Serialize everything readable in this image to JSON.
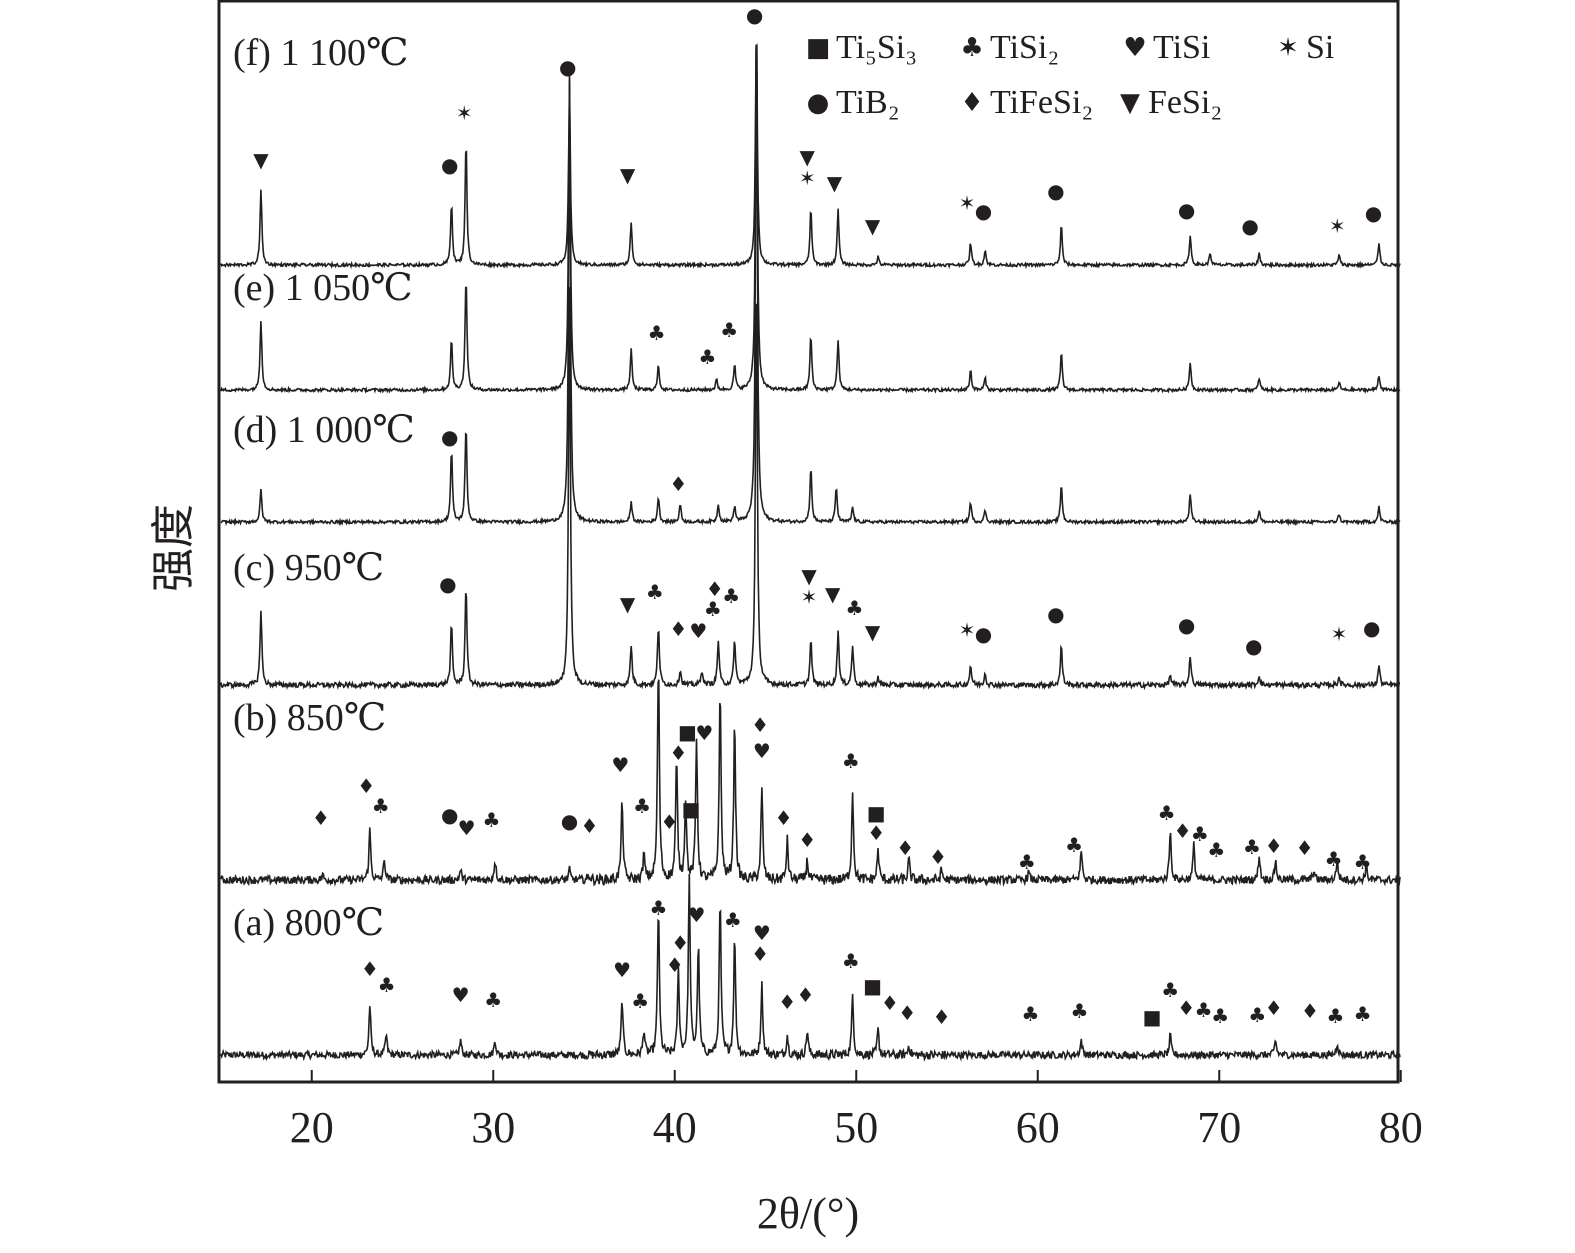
{
  "chart_data": {
    "type": "line",
    "xlabel": "2θ/(°)",
    "ylabel": "强度",
    "xlim": [
      15,
      80
    ],
    "x_ticks": [
      20,
      30,
      40,
      50,
      60,
      70,
      80
    ],
    "y_ticks": [],
    "grid": false,
    "legend_placement": "top-right",
    "legend": [
      {
        "key": "Ti5Si3",
        "symbol": "■",
        "label": "Ti₅Si₃"
      },
      {
        "key": "TiSi2",
        "symbol": "♣",
        "label": "TiSi₂"
      },
      {
        "key": "TiSi",
        "symbol": "♥",
        "label": "TiSi"
      },
      {
        "key": "Si",
        "symbol": "✶",
        "label": "Si"
      },
      {
        "key": "TiB2",
        "symbol": "●",
        "label": "TiB₂"
      },
      {
        "key": "TiFeSi2",
        "symbol": "♦",
        "label": "TiFeSi₂"
      },
      {
        "key": "FeSi2",
        "symbol": "▼",
        "label": "FeSi₂"
      }
    ],
    "intensity_units": "arbitrary (stacked)",
    "series": [
      {
        "name": "(a) 800℃",
        "offset": 27,
        "noise": 7,
        "peaks": [
          [
            23.2,
            50
          ],
          [
            24.1,
            20
          ],
          [
            28.2,
            15
          ],
          [
            30.1,
            15
          ],
          [
            37.1,
            55
          ],
          [
            38.3,
            25
          ],
          [
            39.1,
            150
          ],
          [
            40.2,
            85
          ],
          [
            40.8,
            175
          ],
          [
            41.3,
            110
          ],
          [
            42.5,
            155
          ],
          [
            43.3,
            120
          ],
          [
            44.8,
            70
          ],
          [
            46.2,
            20
          ],
          [
            47.3,
            25
          ],
          [
            49.8,
            60
          ],
          [
            51.2,
            25
          ],
          [
            52.9,
            10
          ],
          [
            62.4,
            15
          ],
          [
            67.3,
            20
          ],
          [
            73.1,
            15
          ],
          [
            76.5,
            12
          ]
        ],
        "markers": [
          [
            23.2,
            86,
            "TiFeSi2"
          ],
          [
            23.9,
            70,
            "TiSi2"
          ],
          [
            28.2,
            60,
            "TiSi"
          ],
          [
            30,
            55,
            "TiSi2"
          ],
          [
            37.1,
            85,
            "TiSi"
          ],
          [
            38.1,
            54,
            "TiSi2"
          ],
          [
            39.1,
            147,
            "TiSi2"
          ],
          [
            40.3,
            112,
            "TiFeSi2"
          ],
          [
            40,
            90,
            "TiFeSi2"
          ],
          [
            41.2,
            140,
            "TiSi"
          ],
          [
            43.2,
            135,
            "TiSi2"
          ],
          [
            44.8,
            122,
            "TiSi"
          ],
          [
            44.7,
            101,
            "TiFeSi2"
          ],
          [
            46.2,
            53,
            "TiFeSi2"
          ],
          [
            47.2,
            60,
            "TiFeSi2"
          ],
          [
            49.7,
            94,
            "TiSi2"
          ],
          [
            50.9,
            69,
            "Ti5Si3"
          ],
          [
            51.3,
            52,
            "TiFeSi2"
          ],
          [
            52.7,
            42,
            "TiFeSi2"
          ],
          [
            54.7,
            38,
            "TiFeSi2"
          ],
          [
            59.6,
            41,
            "TiSi2"
          ],
          [
            62.3,
            44,
            "TiSi2"
          ],
          [
            66.3,
            38,
            "Ti5Si3"
          ],
          [
            67.3,
            65,
            "TiSi2"
          ],
          [
            67.3,
            47,
            "TiFeSi2"
          ],
          [
            68.7,
            45,
            "TiSi2"
          ],
          [
            69.5,
            39,
            "TiSi2"
          ],
          [
            72.1,
            40,
            "TiSi2"
          ],
          [
            73,
            47,
            "TiFeSi2"
          ],
          [
            75,
            44,
            "TiFeSi2"
          ],
          [
            76.4,
            39,
            "TiSi2"
          ],
          [
            77.9,
            41,
            "TiSi2"
          ]
        ]
      },
      {
        "name": "(b) 850℃",
        "offset": 202,
        "noise": 8,
        "peaks": [
          [
            20.6,
            5
          ],
          [
            23.2,
            50
          ],
          [
            24,
            20
          ],
          [
            28.2,
            10
          ],
          [
            30.1,
            20
          ],
          [
            34.2,
            10
          ],
          [
            35.3,
            5
          ],
          [
            37.1,
            80
          ],
          [
            38.3,
            25
          ],
          [
            39.1,
            220
          ],
          [
            40.1,
            120
          ],
          [
            40.6,
            80
          ],
          [
            41.2,
            140
          ],
          [
            42.5,
            190
          ],
          [
            43.3,
            160
          ],
          [
            44.8,
            90
          ],
          [
            46.2,
            40
          ],
          [
            47.3,
            20
          ],
          [
            49.8,
            90
          ],
          [
            51.2,
            30
          ],
          [
            52.9,
            20
          ],
          [
            54.7,
            10
          ],
          [
            59.5,
            8
          ],
          [
            62.4,
            30
          ],
          [
            67.3,
            50
          ],
          [
            68.6,
            35
          ],
          [
            72.2,
            25
          ],
          [
            73.1,
            20
          ],
          [
            75.2,
            10
          ],
          [
            76.5,
            20
          ],
          [
            78.1,
            15
          ]
        ],
        "markers": [
          [
            20.5,
            62,
            "TiFeSi2"
          ],
          [
            23,
            94,
            "TiFeSi2"
          ],
          [
            23.8,
            74,
            "TiSi2"
          ],
          [
            27.6,
            65,
            "TiB2"
          ],
          [
            28.2,
            52,
            "TiSi"
          ],
          [
            29.9,
            60,
            "TiSi2"
          ],
          [
            34.2,
            59,
            "TiB2"
          ],
          [
            35.3,
            54,
            "TiFeSi2"
          ],
          [
            37,
            115,
            "TiSi"
          ],
          [
            38.2,
            74,
            "TiSi2"
          ],
          [
            39.7,
            58,
            "TiFeSi2"
          ],
          [
            40.2,
            127,
            "TiFeSi2"
          ],
          [
            40.7,
            144,
            "Ti5Si3"
          ],
          [
            41.3,
            147,
            "TiSi"
          ],
          [
            40.9,
            71,
            "Ti5Si3"
          ],
          [
            44.7,
            155,
            "TiFeSi2"
          ],
          [
            44.8,
            129,
            "TiSi"
          ],
          [
            46,
            62,
            "TiFeSi2"
          ],
          [
            47.3,
            40,
            "TiFeSi2"
          ],
          [
            49.7,
            119,
            "TiSi2"
          ],
          [
            51.1,
            67,
            "Ti5Si3"
          ],
          [
            51.1,
            47,
            "TiFeSi2"
          ],
          [
            52.7,
            32,
            "TiFeSi2"
          ],
          [
            54.5,
            23,
            "TiFeSi2"
          ],
          [
            59.4,
            18,
            "TiSi2"
          ],
          [
            62,
            35,
            "TiSi2"
          ],
          [
            67.1,
            67,
            "TiSi2"
          ],
          [
            67.1,
            49,
            "TiFeSi2"
          ],
          [
            68.6,
            46,
            "TiSi2"
          ],
          [
            69.4,
            30,
            "TiSi2"
          ],
          [
            71.8,
            33,
            "TiSi2"
          ],
          [
            73,
            34,
            "TiFeSi2"
          ],
          [
            74.7,
            32,
            "TiFeSi2"
          ],
          [
            76.3,
            21,
            "TiSi2"
          ],
          [
            77.9,
            18,
            "TiSi2"
          ]
        ]
      },
      {
        "name": "(c) 950℃",
        "offset": 397,
        "noise": 5,
        "peaks": [
          [
            17.2,
            75
          ],
          [
            27.7,
            60
          ],
          [
            28.5,
            100
          ],
          [
            34.2,
            400
          ],
          [
            37.6,
            40
          ],
          [
            39.1,
            60
          ],
          [
            40.3,
            15
          ],
          [
            41.5,
            15
          ],
          [
            42.4,
            45
          ],
          [
            43.3,
            45
          ],
          [
            44.5,
            420
          ],
          [
            47.5,
            45
          ],
          [
            49,
            55
          ],
          [
            49.8,
            40
          ],
          [
            51.2,
            8
          ],
          [
            56.3,
            20
          ],
          [
            57.1,
            12
          ],
          [
            61.3,
            40
          ],
          [
            67.3,
            10
          ],
          [
            68.4,
            30
          ],
          [
            72.2,
            10
          ],
          [
            76.6,
            8
          ],
          [
            78.8,
            20
          ]
        ],
        "markers": [
          [
            27.5,
            101,
            "TiB2"
          ],
          [
            37.4,
            81,
            "FeSi2"
          ],
          [
            38.9,
            93,
            "TiSi2"
          ],
          [
            40.2,
            56,
            "TiFeSi2"
          ],
          [
            41.3,
            54,
            "TiSi"
          ],
          [
            42.2,
            96,
            "TiFeSi2"
          ],
          [
            42.1,
            76,
            "TiSi2"
          ],
          [
            43,
            89,
            "TiSi2"
          ],
          [
            47.4,
            109,
            "FeSi2"
          ],
          [
            47.4,
            88,
            "Si"
          ],
          [
            48.7,
            91,
            "FeSi2"
          ],
          [
            49.9,
            77,
            "TiSi2"
          ],
          [
            50.9,
            53,
            "FeSi2"
          ],
          [
            56.1,
            55,
            "Si"
          ],
          [
            56.9,
            51,
            "TiB2"
          ],
          [
            61,
            71,
            "TiB2"
          ],
          [
            68.2,
            60,
            "TiB2"
          ],
          [
            71.9,
            39,
            "TiB2"
          ],
          [
            76.6,
            51,
            "Si"
          ],
          [
            78.4,
            57,
            "TiB2"
          ]
        ]
      },
      {
        "name": "(d) 1 000℃",
        "offset": 560,
        "noise": 3,
        "peaks": [
          [
            17.2,
            32
          ],
          [
            27.7,
            72
          ],
          [
            28.5,
            97
          ],
          [
            34.2,
            440
          ],
          [
            37.6,
            20
          ],
          [
            39.1,
            25
          ],
          [
            40.3,
            18
          ],
          [
            42.4,
            18
          ],
          [
            43.3,
            15
          ],
          [
            44.5,
            500
          ],
          [
            47.5,
            55
          ],
          [
            48.9,
            35
          ],
          [
            49.8,
            15
          ],
          [
            56.3,
            20
          ],
          [
            57.1,
            12
          ],
          [
            61.3,
            38
          ],
          [
            68.4,
            28
          ],
          [
            72.2,
            12
          ],
          [
            76.6,
            8
          ],
          [
            78.8,
            15
          ]
        ],
        "markers": [
          [
            27.6,
            85,
            "TiB2"
          ],
          [
            40.2,
            38,
            "TiFeSi2"
          ]
        ]
      },
      {
        "name": "(e) 1 050℃",
        "offset": 692,
        "noise": 3,
        "peaks": [
          [
            17.2,
            70
          ],
          [
            27.7,
            50
          ],
          [
            28.5,
            115
          ],
          [
            34.2,
            320
          ],
          [
            37.6,
            40
          ],
          [
            39.1,
            25
          ],
          [
            42.3,
            10
          ],
          [
            43.3,
            25
          ],
          [
            44.5,
            380
          ],
          [
            47.5,
            55
          ],
          [
            49,
            50
          ],
          [
            56.3,
            20
          ],
          [
            57.1,
            12
          ],
          [
            61.3,
            38
          ],
          [
            68.4,
            28
          ],
          [
            72.2,
            12
          ],
          [
            76.6,
            8
          ],
          [
            78.8,
            15
          ]
        ],
        "markers": [
          [
            39,
            57,
            "TiSi2"
          ],
          [
            41.8,
            33,
            "TiSi2"
          ],
          [
            43,
            60,
            "TiSi2"
          ]
        ]
      },
      {
        "name": "(f) 1 100℃",
        "offset": 817,
        "noise": 3,
        "peaks": [
          [
            17.2,
            75
          ],
          [
            27.7,
            62
          ],
          [
            28.5,
            125
          ],
          [
            34.2,
            175
          ],
          [
            37.6,
            43
          ],
          [
            44.5,
            245
          ],
          [
            47.5,
            57
          ],
          [
            49,
            55
          ],
          [
            51.2,
            8
          ],
          [
            56.3,
            22
          ],
          [
            57.1,
            15
          ],
          [
            61.3,
            40
          ],
          [
            68.4,
            30
          ],
          [
            69.5,
            12
          ],
          [
            72.2,
            12
          ],
          [
            76.6,
            10
          ],
          [
            78.8,
            22
          ]
        ],
        "markers": [
          [
            17.2,
            105,
            "FeSi2"
          ],
          [
            27.6,
            100,
            "TiB2"
          ],
          [
            28.4,
            152,
            "Si"
          ],
          [
            34.1,
            198,
            "TiB2"
          ],
          [
            37.4,
            90,
            "FeSi2"
          ],
          [
            44.4,
            250,
            "TiB2"
          ],
          [
            47.3,
            108,
            "FeSi2"
          ],
          [
            47.3,
            87,
            "Si"
          ],
          [
            48.8,
            82,
            "FeSi2"
          ],
          [
            50.9,
            39,
            "FeSi2"
          ],
          [
            56.1,
            62,
            "Si"
          ],
          [
            56.9,
            54,
            "TiB2"
          ],
          [
            61,
            74,
            "TiB2"
          ],
          [
            68.2,
            55,
            "TiB2"
          ],
          [
            71.7,
            39,
            "TiB2"
          ],
          [
            76.5,
            39,
            "Si"
          ],
          [
            78.5,
            52,
            "TiB2"
          ]
        ]
      }
    ]
  }
}
